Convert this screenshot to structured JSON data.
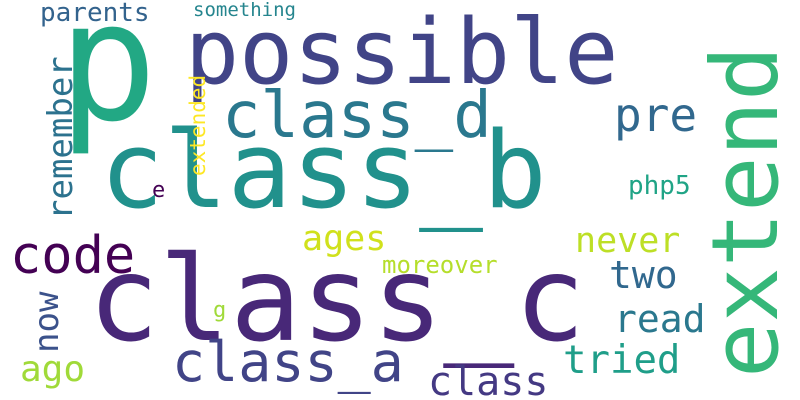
{
  "words": [
    {
      "text": "class_c",
      "color": "#482878"
    },
    {
      "text": "class_b",
      "color": "#21918c"
    },
    {
      "text": "possible",
      "color": "#414487"
    },
    {
      "text": "p",
      "color": "#22a884"
    },
    {
      "text": "extend",
      "color": "#35b779"
    },
    {
      "text": "class_d",
      "color": "#2a788e"
    },
    {
      "text": "class_a",
      "color": "#414487"
    },
    {
      "text": "code",
      "color": "#440154"
    },
    {
      "text": "pre",
      "color": "#31688e"
    },
    {
      "text": "class",
      "color": "#443983"
    },
    {
      "text": "tried",
      "color": "#1f9e89"
    },
    {
      "text": "read",
      "color": "#2a788e"
    },
    {
      "text": "two",
      "color": "#31688e"
    },
    {
      "text": "never",
      "color": "#bddf26"
    },
    {
      "text": "ages",
      "color": "#d0e11c"
    },
    {
      "text": "ago",
      "color": "#a0da39"
    },
    {
      "text": "remember",
      "color": "#2c728e"
    },
    {
      "text": "now",
      "color": "#3b528b"
    },
    {
      "text": "php5",
      "color": "#20a486"
    },
    {
      "text": "moreover",
      "color": "#b5de2b"
    },
    {
      "text": "parents",
      "color": "#33638d"
    },
    {
      "text": "extended",
      "color": "#fde725"
    },
    {
      "text": "something",
      "color": "#25858e"
    },
    {
      "text": "e",
      "color": "#440154"
    },
    {
      "text": "g",
      "color": "#a0da39"
    }
  ]
}
